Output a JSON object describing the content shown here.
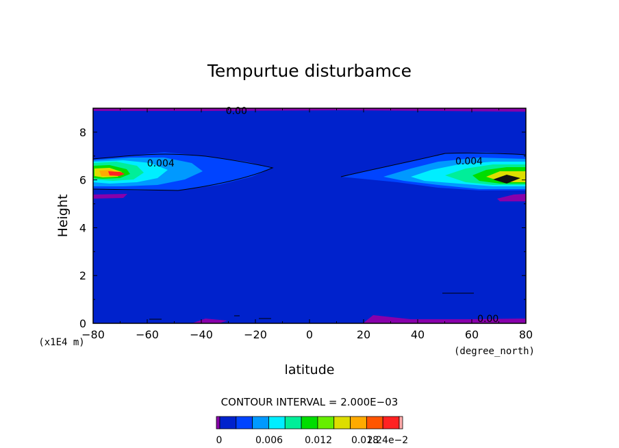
{
  "chart_data": {
    "type": "contour",
    "title": "Tempurtue disturbamce",
    "xlabel": "latitude",
    "ylabel": "Height",
    "x_units": "(degree_north)",
    "y_units": "(x1E4 m)",
    "xlim": [
      -80,
      80
    ],
    "ylim": [
      0,
      9
    ],
    "x_ticks": [
      -80,
      -60,
      -40,
      -20,
      0,
      20,
      40,
      60,
      80
    ],
    "x_tick_labels": [
      "−80",
      "−60",
      "−40",
      "−20",
      "0",
      "20",
      "40",
      "60",
      "80"
    ],
    "y_ticks": [
      0,
      2,
      4,
      6,
      8
    ],
    "y_tick_labels": [
      "0",
      "2",
      "4",
      "6",
      "8"
    ],
    "contour_interval_text": "CONTOUR INTERVAL = 2.000E−03",
    "contour_labels": [
      {
        "text": "0.004",
        "x": -55,
        "y": 6.7
      },
      {
        "text": "0.004",
        "x": 59,
        "y": 6.8
      },
      {
        "text": "0.00",
        "x": -27,
        "y": 8.9
      },
      {
        "text": "0.00",
        "x": 66,
        "y": 0.2
      }
    ],
    "features": [
      {
        "kind": "hotspot",
        "x": -72,
        "y": 6.3
      },
      {
        "kind": "hotspot",
        "x": 70,
        "y": 6.0
      }
    ],
    "colorbar": {
      "colors": [
        "#8800aa",
        "#0022cc",
        "#0044ff",
        "#0099ff",
        "#00eeff",
        "#00ee99",
        "#00dd00",
        "#66ee00",
        "#dddd00",
        "#ffaa00",
        "#ff5500",
        "#ff2222",
        "#ffaaaa"
      ],
      "tick_labels": [
        "0",
        "0.006",
        "0.012",
        "0.018",
        "2.24e−2"
      ]
    }
  }
}
